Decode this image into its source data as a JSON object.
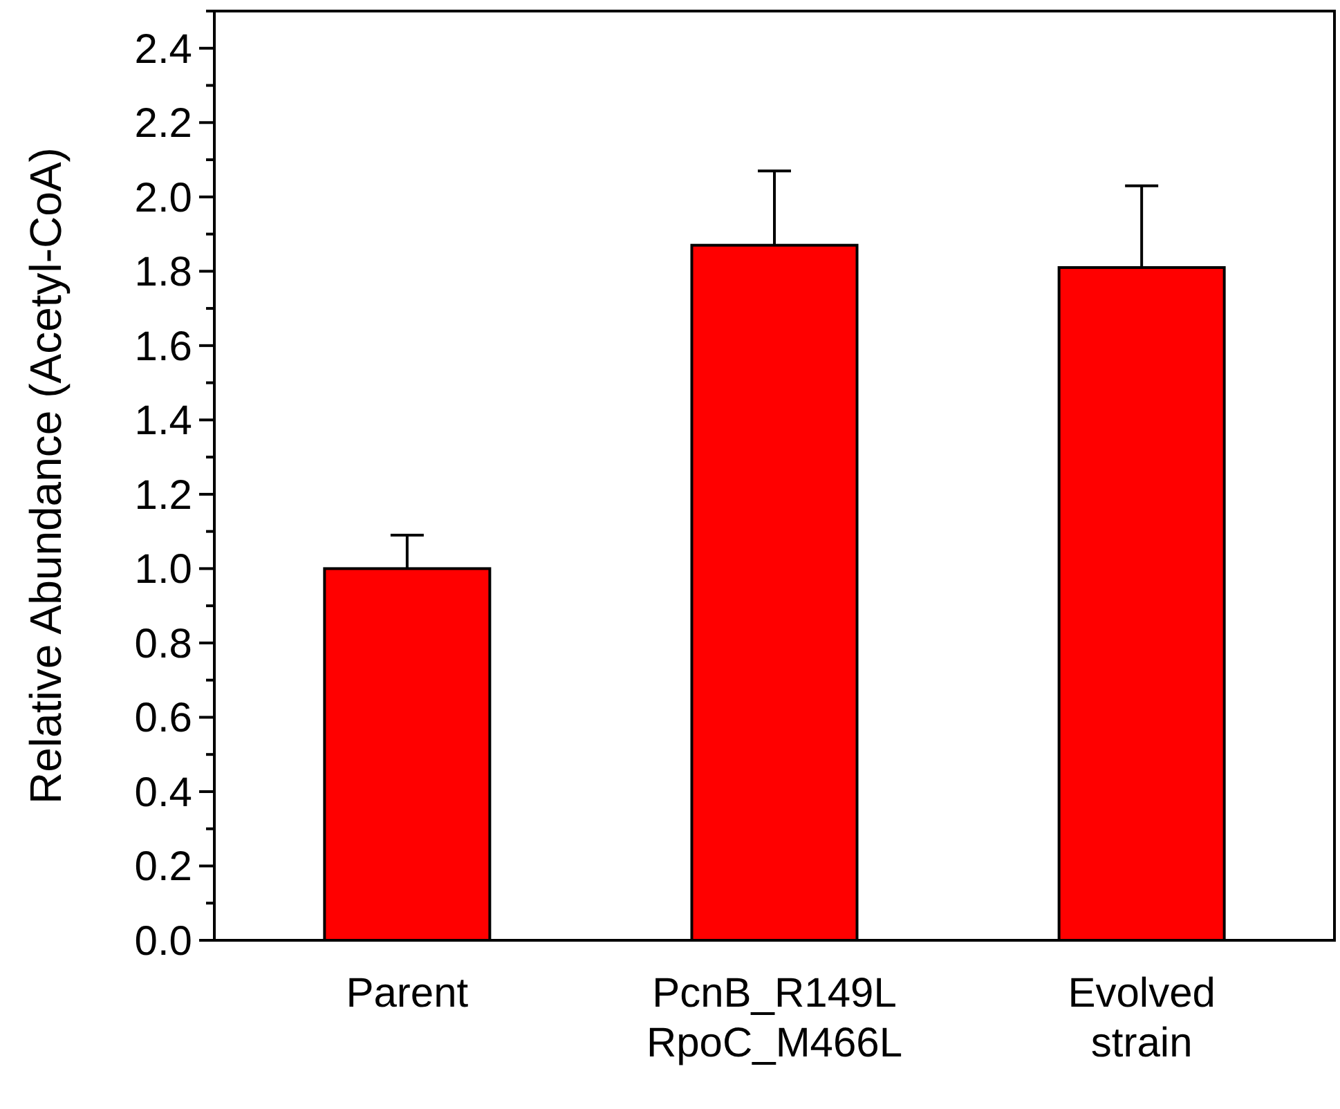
{
  "chart_data": {
    "type": "bar",
    "ylabel": "Relative Abundance (Acetyl-CoA)",
    "categories": [
      "Parent",
      "PcnB_R149L\nRpoC_M466L",
      "Evolved\nstrain"
    ],
    "values": [
      1.0,
      1.87,
      1.81
    ],
    "errors": [
      [
        1.0,
        1.09
      ],
      [
        1.87,
        2.07
      ],
      [
        1.81,
        2.03
      ]
    ],
    "color": "#ff0000",
    "ylim": [
      0,
      2.5
    ],
    "yticks": [
      {
        "value": 0,
        "label": "0.0"
      },
      {
        "value": 0.1,
        "label": null
      },
      {
        "value": 0.2,
        "label": "0.2"
      },
      {
        "value": 0.3,
        "label": null
      },
      {
        "value": 0.4,
        "label": "0.4"
      },
      {
        "value": 0.5,
        "label": null
      },
      {
        "value": 0.6,
        "label": "0.6"
      },
      {
        "value": 0.7,
        "label": null
      },
      {
        "value": 0.8,
        "label": "0.8"
      },
      {
        "value": 0.9,
        "label": null
      },
      {
        "value": 1.0,
        "label": "1.0"
      },
      {
        "value": 1.1,
        "label": null
      },
      {
        "value": 1.2,
        "label": "1.2"
      },
      {
        "value": 1.3,
        "label": null
      },
      {
        "value": 1.4,
        "label": "1.4"
      },
      {
        "value": 1.5,
        "label": null
      },
      {
        "value": 1.6,
        "label": "1.6"
      },
      {
        "value": 1.7,
        "label": null
      },
      {
        "value": 1.8,
        "label": "1.8"
      },
      {
        "value": 1.9,
        "label": null
      },
      {
        "value": 2.0,
        "label": "2.0"
      },
      {
        "value": 2.1,
        "label": null
      },
      {
        "value": 2.2,
        "label": "2.2"
      },
      {
        "value": 2.3,
        "label": null
      },
      {
        "value": 2.4,
        "label": "2.4"
      },
      {
        "value": 2.5,
        "label": null
      }
    ],
    "grid": false
  }
}
